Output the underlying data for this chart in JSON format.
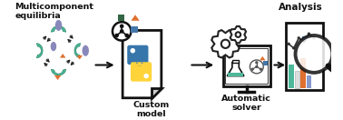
{
  "bg_color": "#ffffff",
  "title_left": "Multicomponent\nequilibria",
  "label_custom": "Custom\nmodel",
  "label_auto": "Automatic\nsolver",
  "label_analysis": "Analysis",
  "teal": "#4db89a",
  "purple": "#8888bb",
  "orange": "#e07030",
  "dark_teal": "#2a8a6a",
  "blue_sq": "#4477aa",
  "green_sq": "#336644",
  "py_blue": "#3776ab",
  "py_yellow": "#ffd43b",
  "bar_teal": "#4db89a",
  "bar_orange": "#e07030",
  "bar_white": "#ffffff",
  "bar_blue": "#8899cc",
  "gear_color": "#333333",
  "arrow_color": "#111111",
  "icon_edge": "#111111"
}
